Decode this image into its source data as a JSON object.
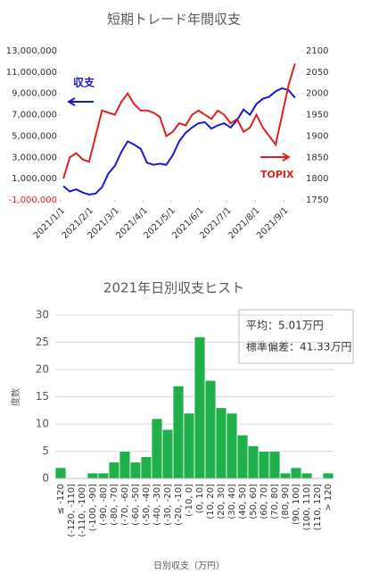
{
  "chart_data": [
    {
      "type": "line",
      "title": "短期トレード年間収支",
      "x": [
        "2021/1/4",
        "2021/1/11",
        "2021/1/18",
        "2021/1/25",
        "2021/2/1",
        "2021/2/8",
        "2021/2/15",
        "2021/2/22",
        "2021/3/1",
        "2021/3/8",
        "2021/3/15",
        "2021/3/22",
        "2021/3/29",
        "2021/4/5",
        "2021/4/12",
        "2021/4/19",
        "2021/4/26",
        "2021/5/3",
        "2021/5/10",
        "2021/5/17",
        "2021/5/24",
        "2021/5/31",
        "2021/6/7",
        "2021/6/14",
        "2021/6/21",
        "2021/6/28",
        "2021/7/5",
        "2021/7/12",
        "2021/7/19",
        "2021/7/26",
        "2021/8/2",
        "2021/8/9",
        "2021/8/16",
        "2021/8/23",
        "2021/8/30",
        "2021/9/6",
        "2021/9/13"
      ],
      "xlim": [
        "2021/1/1",
        "2021/9/20"
      ],
      "xticks": [
        "2021/1/1",
        "2021/2/1",
        "2021/3/1",
        "2021/4/1",
        "2021/5/1",
        "2021/6/1",
        "2021/7/1",
        "2021/8/1",
        "2021/9/1"
      ],
      "series": [
        {
          "name": "収支",
          "color": "#1a1acc",
          "values": [
            300000,
            -200000,
            0,
            -300000,
            -500000,
            -400000,
            200000,
            1500000,
            2200000,
            3500000,
            4500000,
            4200000,
            3800000,
            2500000,
            2300000,
            2400000,
            2300000,
            3200000,
            4500000,
            5300000,
            5800000,
            6200000,
            6300000,
            5700000,
            6000000,
            6200000,
            5800000,
            6500000,
            7500000,
            7000000,
            8000000,
            8500000,
            8700000,
            9200000,
            9500000,
            9300000,
            8600000
          ]
        },
        {
          "name": "TOPIX",
          "color": "#e0201e",
          "axis": "y2",
          "values": [
            1800,
            1850,
            1860,
            1845,
            1840,
            1900,
            1960,
            1955,
            1950,
            1980,
            2000,
            1975,
            1960,
            1960,
            1955,
            1945,
            1900,
            1910,
            1930,
            1925,
            1950,
            1960,
            1950,
            1940,
            1960,
            1950,
            1930,
            1940,
            1910,
            1920,
            1950,
            1920,
            1900,
            1880,
            1950,
            2020,
            2070
          ]
        }
      ],
      "ylim": [
        -1000000,
        13000000
      ],
      "yticks": [
        {
          "value": -1000000,
          "label": "-1,000,000"
        },
        {
          "value": 1000000,
          "label": "1,000,000"
        },
        {
          "value": 3000000,
          "label": "3,000,000"
        },
        {
          "value": 5000000,
          "label": "5,000,000"
        },
        {
          "value": 7000000,
          "label": "7,000,000"
        },
        {
          "value": 9000000,
          "label": "9,000,000"
        },
        {
          "value": 11000000,
          "label": "11,000,000"
        },
        {
          "value": 13000000,
          "label": "13,000,000"
        }
      ],
      "y2lim": [
        1750,
        2100
      ],
      "y2ticks": [
        1750,
        1800,
        1850,
        1900,
        1950,
        2000,
        2050,
        2100
      ],
      "grid": false
    },
    {
      "type": "bar",
      "title": "2021年日別収支ヒスト",
      "categories": [
        "≤ -120",
        "(-120, -110]",
        "(-110, -100]",
        "(-100, -90]",
        "(-90, -80]",
        "(-80, -70]",
        "(-70, -60]",
        "(-60, -50]",
        "(-50, -40]",
        "(-40, -30]",
        "(-30, -20]",
        "(-20, -10]",
        "(-10, 0]",
        "(0, 10]",
        "(10, 20]",
        "(20, 30]",
        "(30, 40]",
        "(40, 50]",
        "(50, 60]",
        "(60, 70]",
        "(70, 80]",
        "(80, 90]",
        "(90, 100]",
        "(100, 110]",
        "(110, 120]",
        "> 120"
      ],
      "values": [
        2,
        0,
        0,
        1,
        1,
        3,
        5,
        3,
        4,
        11,
        9,
        17,
        12,
        26,
        18,
        13,
        12,
        8,
        6,
        5,
        5,
        1,
        2,
        1,
        0,
        1
      ],
      "color": "#1fb04c",
      "ylim": [
        0,
        30
      ],
      "yticks": [
        0,
        5,
        10,
        15,
        20,
        25,
        30
      ],
      "grid": true,
      "xlabel": "日別収支（万円）",
      "ylabel": "度数",
      "annotations": [
        "平均：5.01万円",
        "標準偏差：41.33万円"
      ]
    }
  ]
}
